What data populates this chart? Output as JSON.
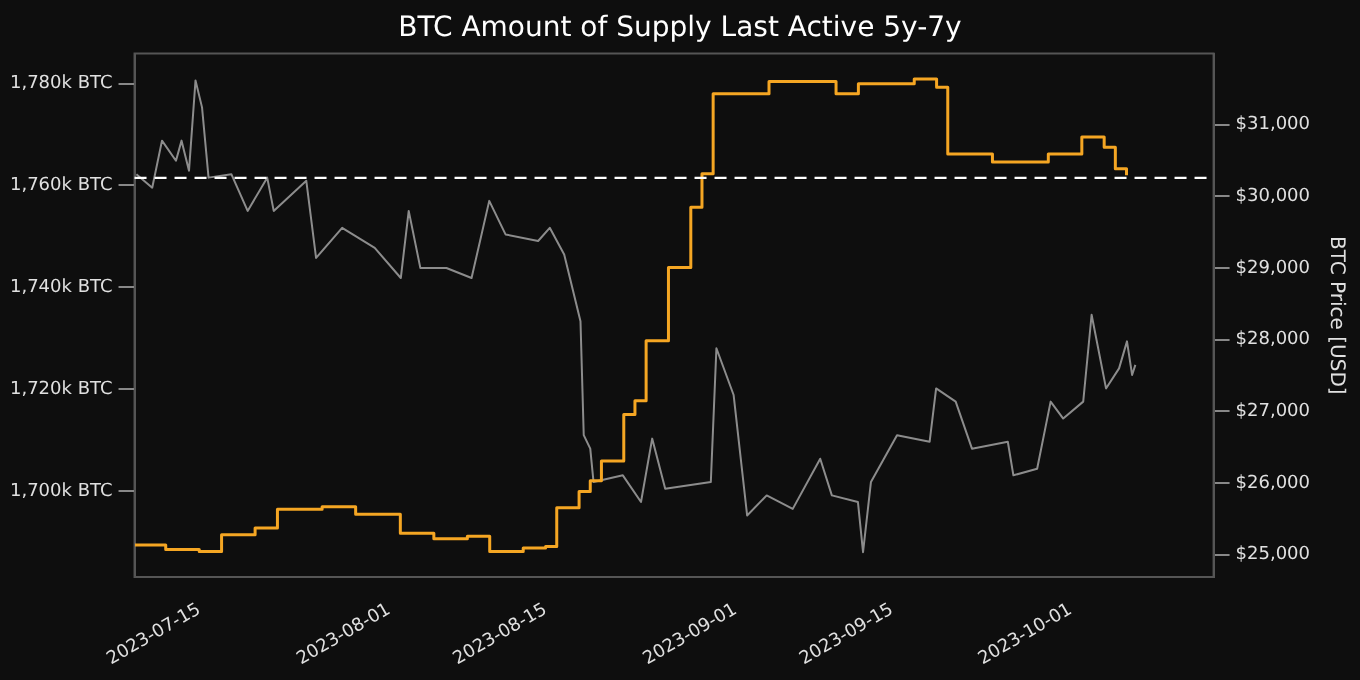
{
  "chart_data": {
    "type": "line",
    "title": "BTC Amount of Supply Last Active 5y-7y",
    "y2label": "BTC Price [USD]",
    "xlim": [
      "2023-07-09T05:00",
      "2023-10-13T19:00"
    ],
    "xticks": [
      "2023-07-15",
      "2023-08-01",
      "2023-08-15",
      "2023-09-01",
      "2023-09-15",
      "2023-10-01"
    ],
    "ylim": [
      1683.1,
      1785.9
    ],
    "yticks": [
      {
        "value": 1700,
        "label": "1,700k BTC"
      },
      {
        "value": 1720,
        "label": "1,720k BTC"
      },
      {
        "value": 1740,
        "label": "1,740k BTC"
      },
      {
        "value": 1760,
        "label": "1,760k BTC"
      },
      {
        "value": 1780,
        "label": "1,780k BTC"
      }
    ],
    "y2lim": [
      24690,
      31990
    ],
    "y2ticks": [
      {
        "value": 25000,
        "label": "$25,000"
      },
      {
        "value": 26000,
        "label": "$26,000"
      },
      {
        "value": 27000,
        "label": "$27,000"
      },
      {
        "value": 28000,
        "label": "$28,000"
      },
      {
        "value": 29000,
        "label": "$29,000"
      },
      {
        "value": 30000,
        "label": "$30,000"
      },
      {
        "value": 31000,
        "label": "$31,000"
      }
    ],
    "series": [
      {
        "type": "step",
        "color": "#f5a623",
        "x": [
          "2023-07-09T06:00",
          "2023-07-12",
          "2023-07-15",
          "2023-07-17",
          "2023-07-20",
          "2023-07-22",
          "2023-07-26",
          "2023-07-29",
          "2023-08-02",
          "2023-08-05",
          "2023-08-08",
          "2023-08-10",
          "2023-08-13",
          "2023-08-15",
          "2023-08-16",
          "2023-08-18",
          "2023-08-19",
          "2023-08-20",
          "2023-08-22",
          "2023-08-23",
          "2023-08-24",
          "2023-08-26",
          "2023-08-28",
          "2023-08-29",
          "2023-08-30",
          "2023-09-04",
          "2023-09-10",
          "2023-09-12",
          "2023-09-17",
          "2023-09-19",
          "2023-09-20",
          "2023-09-24",
          "2023-09-29",
          "2023-10-02",
          "2023-10-04",
          "2023-10-05",
          "2023-10-06"
        ],
        "values": [
          1689.4,
          1688.5,
          1688.1,
          1691.4,
          1692.7,
          1696.4,
          1696.9,
          1695.4,
          1691.7,
          1690.6,
          1691.1,
          1688.1,
          1688.8,
          1689.1,
          1696.7,
          1699.9,
          1702,
          1705.9,
          1715,
          1717.7,
          1729.5,
          1743.9,
          1755.7,
          1762.3,
          1778,
          1780.4,
          1778,
          1780,
          1780.9,
          1779.3,
          1766.2,
          1764.6,
          1766.2,
          1769.5,
          1767.5,
          1763.3,
          1762
        ]
      },
      {
        "axis": "y2",
        "color": "#8c8c8c",
        "x": [
          "2023-07-09T09:00",
          "2023-07-10T19:00",
          "2023-07-11T16:00",
          "2023-07-12T22:00",
          "2023-07-13T10:00",
          "2023-07-14T02:00",
          "2023-07-14T16:00",
          "2023-07-15T06:00",
          "2023-07-15T20:00",
          "2023-07-17T21:00",
          "2023-07-19T08:00",
          "2023-07-21T02:00",
          "2023-07-21T16:00",
          "2023-07-24T14:00",
          "2023-07-25T11:00",
          "2023-07-27T19:00",
          "2023-07-30T17:00",
          "2023-08-02T01:00",
          "2023-08-02T18:00",
          "2023-08-03T19:00",
          "2023-08-06T03:00",
          "2023-08-08T09:00",
          "2023-08-09T23:00",
          "2023-08-11T10:00",
          "2023-08-14T08:00",
          "2023-08-15T09:00",
          "2023-08-16T16:00",
          "2023-08-18T03:00",
          "2023-08-18T10:00",
          "2023-08-19T00:00",
          "2023-08-19T07:00",
          "2023-08-21T22:00",
          "2023-08-23T13:00",
          "2023-08-24T13:00",
          "2023-08-25T17:00",
          "2023-08-29T19:00",
          "2023-08-30T07:00",
          "2023-08-31T20:00",
          "2023-09-02T01:00",
          "2023-09-03T19:00",
          "2023-09-06T03:00",
          "2023-09-08T14:00",
          "2023-09-09T15:00",
          "2023-09-11T23:00",
          "2023-09-12T10:00",
          "2023-09-13T03:00",
          "2023-09-15T11:00",
          "2023-09-18T09:00",
          "2023-09-18T23:00",
          "2023-09-20T17:00",
          "2023-09-22T04:00",
          "2023-09-25T09:00",
          "2023-09-25T21:00",
          "2023-09-28T00:00",
          "2023-09-29T05:00",
          "2023-09-30T08:00",
          "2023-10-02T03:00",
          "2023-10-02T21:00",
          "2023-10-04T04:00",
          "2023-10-05T08:00",
          "2023-10-06T01:00",
          "2023-10-06T12:00",
          "2023-10-06T19:00"
        ],
        "values": [
          30308,
          30120,
          30776,
          30496,
          30776,
          30356,
          31616,
          31240,
          30260,
          30308,
          29796,
          30260,
          29796,
          30216,
          29140,
          29560,
          29280,
          28860,
          29796,
          29000,
          29000,
          28860,
          29936,
          29468,
          29376,
          29560,
          29188,
          28256,
          26668,
          26480,
          26016,
          26108,
          25736,
          26620,
          25920,
          26016,
          27880,
          27228,
          25548,
          25828,
          25640,
          26340,
          25828,
          25736,
          25036,
          26016,
          26668,
          26576,
          27320,
          27136,
          26480,
          26576,
          26108,
          26200,
          27136,
          26900,
          27136,
          28348,
          27320,
          27600,
          27976,
          27508,
          27648
        ]
      }
    ],
    "ref_lines": [
      {
        "axis": "y",
        "value": 1761.5,
        "color": "#ffffff",
        "line_style": "dashed"
      }
    ],
    "grid": false,
    "legend": false
  }
}
